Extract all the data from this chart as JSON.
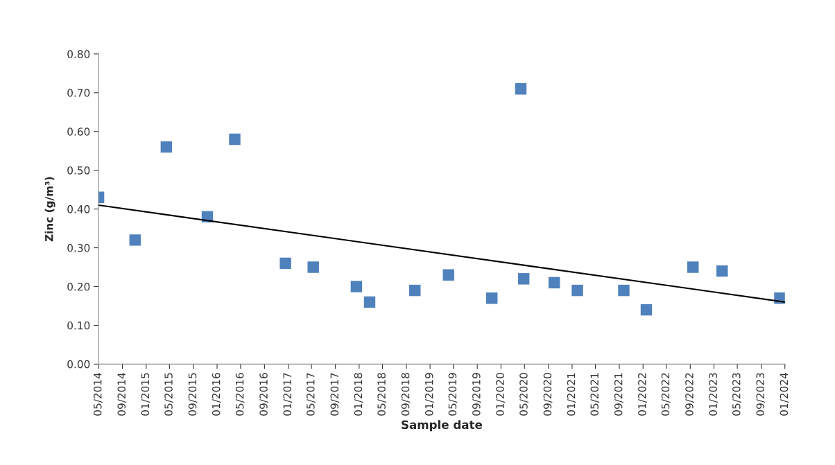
{
  "chart_data": {
    "type": "scatter",
    "xlabel": "Sample date",
    "ylabel": "Zinc (g/m³)",
    "ylim": [
      0,
      0.8
    ],
    "yticks": [
      {
        "value": 0,
        "label": "0.00"
      },
      {
        "value": 0.1,
        "label": "0.10"
      },
      {
        "value": 0.2,
        "label": "0.20"
      },
      {
        "value": 0.3,
        "label": "0.30"
      },
      {
        "value": 0.4,
        "label": "0.40"
      },
      {
        "value": 0.5,
        "label": "0.50"
      },
      {
        "value": 0.6,
        "label": "0.60"
      },
      {
        "value": 0.7,
        "label": "0.70"
      },
      {
        "value": 0.8,
        "label": "0.80"
      }
    ],
    "xlim": [
      "2014-05",
      "2024-01"
    ],
    "xticks": [
      {
        "value": "2014-05",
        "label": "05/2014"
      },
      {
        "value": "2014-09",
        "label": "09/2014"
      },
      {
        "value": "2015-01",
        "label": "01/2015"
      },
      {
        "value": "2015-05",
        "label": "05/2015"
      },
      {
        "value": "2015-09",
        "label": "09/2015"
      },
      {
        "value": "2016-01",
        "label": "01/2016"
      },
      {
        "value": "2016-05",
        "label": "05/2016"
      },
      {
        "value": "2016-09",
        "label": "09/2016"
      },
      {
        "value": "2017-01",
        "label": "01/2017"
      },
      {
        "value": "2017-05",
        "label": "05/2017"
      },
      {
        "value": "2017-09",
        "label": "09/2017"
      },
      {
        "value": "2018-01",
        "label": "01/2018"
      },
      {
        "value": "2018-05",
        "label": "05/2018"
      },
      {
        "value": "2018-09",
        "label": "09/2018"
      },
      {
        "value": "2019-01",
        "label": "01/2019"
      },
      {
        "value": "2019-05",
        "label": "05/2019"
      },
      {
        "value": "2019-09",
        "label": "09/2019"
      },
      {
        "value": "2020-01",
        "label": "01/2020"
      },
      {
        "value": "2020-05",
        "label": "05/2020"
      },
      {
        "value": "2020-09",
        "label": "09/2020"
      },
      {
        "value": "2021-01",
        "label": "01/2021"
      },
      {
        "value": "2021-05",
        "label": "05/2021"
      },
      {
        "value": "2021-09",
        "label": "09/2021"
      },
      {
        "value": "2022-01",
        "label": "01/2022"
      },
      {
        "value": "2022-05",
        "label": "05/2022"
      },
      {
        "value": "2022-09",
        "label": "09/2022"
      },
      {
        "value": "2023-01",
        "label": "01/2023"
      },
      {
        "value": "2023-05",
        "label": "05/2023"
      },
      {
        "value": "2023-09",
        "label": "09/2023"
      },
      {
        "value": "2024-01",
        "label": "01/2024"
      }
    ],
    "grid": false,
    "legend": false,
    "series": [
      {
        "color": "#4f81bd",
        "marker": "square",
        "x": [
          "2014-05-01",
          "2014-11-05",
          "2015-04-15",
          "2015-11-12",
          "2016-04-01",
          "2016-12-18",
          "2017-05-10",
          "2017-12-18",
          "2018-02-24",
          "2018-10-15",
          "2019-04-06",
          "2019-11-15",
          "2020-04-12",
          "2020-04-27",
          "2020-10-01",
          "2021-01-28",
          "2021-09-24",
          "2022-01-18",
          "2022-09-15",
          "2023-02-12",
          "2023-12-06"
        ],
        "values": [
          0.43,
          0.32,
          0.56,
          0.38,
          0.58,
          0.26,
          0.25,
          0.2,
          0.16,
          0.19,
          0.23,
          0.17,
          0.71,
          0.22,
          0.21,
          0.19,
          0.19,
          0.14,
          0.25,
          0.24,
          0.17
        ]
      },
      {
        "type": "line",
        "color": "#000000",
        "marker": "none",
        "line_style": "solid",
        "x": [
          "2014-05-01",
          "2024-01-01"
        ],
        "values": [
          0.41,
          0.16
        ]
      }
    ]
  }
}
